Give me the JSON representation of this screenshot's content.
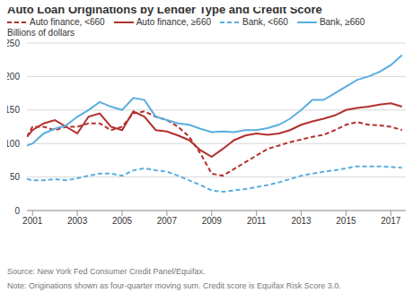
{
  "chart_data": {
    "type": "line",
    "title": "Auto Loan Originations by Lender Type and Credit Score",
    "ylabel": "Billions of dollars",
    "source": "Source: New York Fed Consumer Credit Panel/Equifax.",
    "note": "Note: Originations shown as four-quarter moving sum. Credit score is Equifax Risk Score 3.0.",
    "x": [
      2000.75,
      2001,
      2001.5,
      2002,
      2002.5,
      2003,
      2003.5,
      2004,
      2004.5,
      2005,
      2005.5,
      2006,
      2006.5,
      2007,
      2007.5,
      2008,
      2008.5,
      2009,
      2009.5,
      2010,
      2010.5,
      2011,
      2011.5,
      2012,
      2012.5,
      2013,
      2013.5,
      2014,
      2014.5,
      2015,
      2015.5,
      2016,
      2016.5,
      2017,
      2017.5
    ],
    "series": [
      {
        "name": "Auto finance, <660",
        "color": "#b3302e",
        "line_style": "dashed",
        "values": [
          110,
          125,
          125,
          120,
          125,
          125,
          130,
          130,
          120,
          125,
          145,
          148,
          140,
          135,
          125,
          110,
          85,
          55,
          52,
          62,
          72,
          82,
          92,
          97,
          102,
          106,
          110,
          113,
          120,
          128,
          132,
          128,
          127,
          125,
          120
        ]
      },
      {
        "name": "Auto finance, ≥660",
        "color": "#b3302e",
        "line_style": "solid",
        "values": [
          110,
          120,
          130,
          135,
          125,
          115,
          140,
          145,
          125,
          120,
          148,
          140,
          120,
          118,
          112,
          105,
          90,
          80,
          92,
          105,
          112,
          115,
          113,
          115,
          120,
          128,
          133,
          137,
          142,
          150,
          153,
          155,
          158,
          160,
          155
        ]
      },
      {
        "name": "Bank, <660",
        "color": "#5aaee0",
        "line_style": "dashed",
        "values": [
          47,
          45,
          45,
          47,
          45,
          48,
          52,
          55,
          55,
          52,
          60,
          63,
          60,
          58,
          52,
          45,
          38,
          30,
          28,
          30,
          32,
          35,
          38,
          42,
          47,
          52,
          55,
          58,
          60,
          63,
          66,
          66,
          66,
          65,
          64
        ]
      },
      {
        "name": "Bank, ≥660",
        "color": "#5aaee0",
        "line_style": "solid",
        "values": [
          97,
          100,
          115,
          122,
          127,
          140,
          150,
          162,
          155,
          150,
          168,
          165,
          140,
          135,
          130,
          128,
          122,
          117,
          118,
          117,
          120,
          120,
          123,
          128,
          137,
          150,
          165,
          165,
          175,
          185,
          195,
          200,
          207,
          217,
          232
        ]
      }
    ],
    "xlim": [
      2000.75,
      2017.75
    ],
    "xticks": [
      2001,
      2003,
      2005,
      2007,
      2009,
      2011,
      2013,
      2015,
      2017
    ],
    "ylim": [
      0,
      250
    ],
    "yticks": [
      0,
      50,
      100,
      150,
      200,
      250
    ],
    "grid": true,
    "legend": "top"
  }
}
